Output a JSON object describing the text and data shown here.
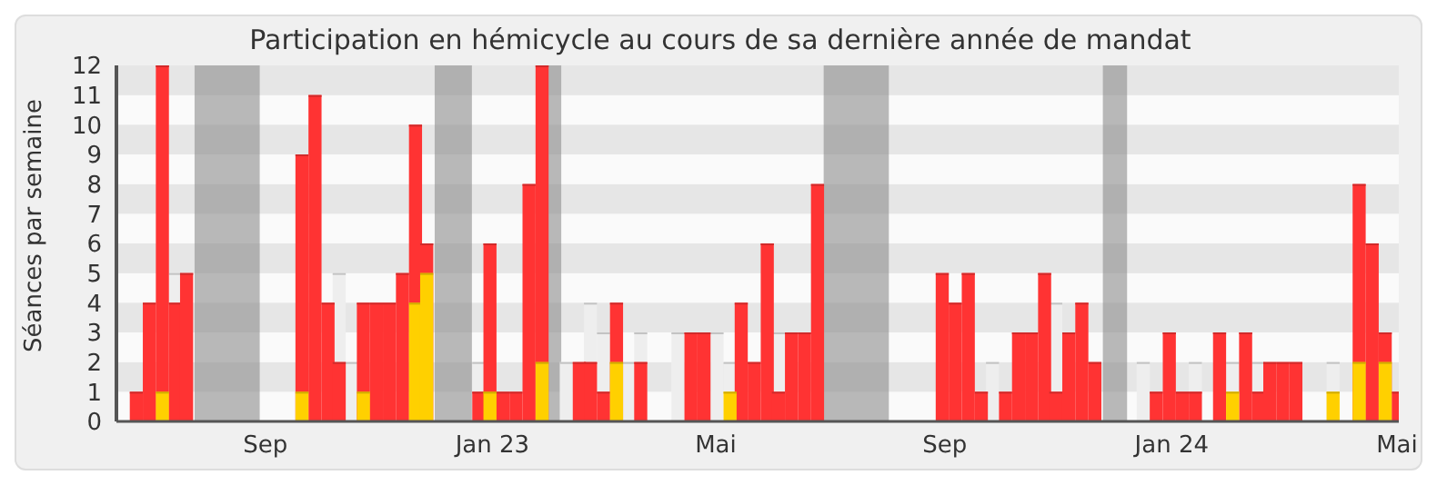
{
  "chart_data": {
    "type": "bar",
    "title": "Participation en hémicycle au cours de sa dernière année de mandat",
    "ylabel": "Séances par semaine",
    "x": [
      "2022-06-24",
      "2022-07-01",
      "2022-07-08",
      "2022-07-15",
      "2022-07-21",
      "2022-09-21",
      "2022-09-28",
      "2022-10-05",
      "2022-10-11",
      "2022-10-18",
      "2022-10-24",
      "2022-10-31",
      "2022-11-07",
      "2022-11-14",
      "2022-11-21",
      "2022-11-27",
      "2022-12-25",
      "2022-12-31",
      "2023-01-07",
      "2023-01-14",
      "2023-01-21",
      "2023-01-28",
      "2023-02-10",
      "2023-02-17",
      "2023-02-23",
      "2023-03-02",
      "2023-03-09",
      "2023-03-16",
      "2023-03-22",
      "2023-04-11",
      "2023-04-18",
      "2023-04-25",
      "2023-05-02",
      "2023-05-09",
      "2023-05-15",
      "2023-05-22",
      "2023-05-29",
      "2023-06-04",
      "2023-06-11",
      "2023-06-18",
      "2023-06-25",
      "2023-08-31",
      "2023-09-07",
      "2023-09-14",
      "2023-09-21",
      "2023-09-27",
      "2023-10-04",
      "2023-10-11",
      "2023-10-18",
      "2023-10-25",
      "2023-10-31",
      "2023-11-07",
      "2023-11-14",
      "2023-11-21",
      "2023-12-17",
      "2023-12-24",
      "2023-12-31",
      "2024-01-07",
      "2024-01-14",
      "2024-01-27",
      "2024-02-03",
      "2024-02-10",
      "2024-02-17",
      "2024-02-23",
      "2024-03-01",
      "2024-03-08",
      "2024-03-28",
      "2024-04-11",
      "2024-04-18",
      "2024-04-25",
      "2024-05-02"
    ],
    "series": [
      {
        "color": "#eeeeee",
        "values": [
          null,
          null,
          null,
          5,
          null,
          null,
          null,
          null,
          5,
          2,
          null,
          null,
          null,
          null,
          null,
          null,
          2,
          null,
          null,
          null,
          null,
          null,
          2,
          null,
          4,
          3,
          null,
          2,
          3,
          3,
          null,
          null,
          3,
          2,
          null,
          null,
          null,
          3,
          null,
          null,
          null,
          null,
          null,
          null,
          null,
          2,
          null,
          null,
          null,
          null,
          4,
          null,
          null,
          null,
          2,
          null,
          null,
          null,
          2,
          null,
          2,
          null,
          2,
          null,
          null,
          null,
          2,
          null,
          null,
          null,
          null
        ]
      },
      {
        "color": "#ff3333",
        "values": [
          1,
          4,
          12,
          4,
          5,
          9,
          11,
          4,
          2,
          null,
          4,
          4,
          4,
          5,
          10,
          6,
          1,
          6,
          1,
          1,
          8,
          12,
          null,
          2,
          2,
          1,
          4,
          null,
          2,
          null,
          3,
          3,
          null,
          null,
          4,
          2,
          6,
          1,
          3,
          3,
          8,
          5,
          4,
          5,
          1,
          null,
          1,
          3,
          3,
          5,
          1,
          3,
          4,
          2,
          null,
          1,
          3,
          1,
          1,
          3,
          null,
          3,
          1,
          2,
          2,
          2,
          null,
          8,
          6,
          3,
          1
        ]
      },
      {
        "color": "#ffd000",
        "values": [
          null,
          null,
          1,
          null,
          null,
          1,
          null,
          null,
          null,
          null,
          1,
          null,
          null,
          null,
          4,
          5,
          null,
          1,
          null,
          null,
          null,
          2,
          null,
          null,
          null,
          null,
          2,
          null,
          null,
          null,
          null,
          null,
          null,
          1,
          null,
          null,
          null,
          null,
          null,
          null,
          null,
          null,
          null,
          null,
          null,
          null,
          null,
          null,
          null,
          null,
          null,
          null,
          null,
          null,
          null,
          null,
          null,
          null,
          null,
          null,
          1,
          null,
          null,
          null,
          null,
          null,
          1,
          2,
          null,
          2,
          null
        ]
      }
    ],
    "xlim": [
      "2022-06-13",
      "2024-05-02"
    ],
    "xticks": [
      {
        "value": "2022-09-01",
        "label": "Sep"
      },
      {
        "value": "2023-01-01",
        "label": "Jan 23"
      },
      {
        "value": "2023-05-01",
        "label": "Mai"
      },
      {
        "value": "2023-09-01",
        "label": "Sep"
      },
      {
        "value": "2024-01-01",
        "label": "Jan 24"
      },
      {
        "value": "2024-05-01",
        "label": "Mai"
      }
    ],
    "ylim": [
      0,
      12
    ],
    "yticks": [
      0,
      1,
      2,
      3,
      4,
      5,
      6,
      7,
      8,
      9,
      10,
      11,
      12
    ],
    "bands": [
      {
        "axis": "x",
        "from": "2022-07-25",
        "to": "2022-08-29",
        "color": "#8c8c8c"
      },
      {
        "axis": "x",
        "from": "2022-12-01",
        "to": "2022-12-21",
        "color": "#8c8c8c"
      },
      {
        "axis": "x",
        "from": "2023-01-31",
        "to": "2023-02-07",
        "color": "#8c8c8c"
      },
      {
        "axis": "x",
        "from": "2023-06-28",
        "to": "2023-08-02",
        "color": "#8c8c8c"
      },
      {
        "axis": "x",
        "from": "2023-11-25",
        "to": "2023-12-08",
        "color": "#8c8c8c"
      }
    ]
  }
}
